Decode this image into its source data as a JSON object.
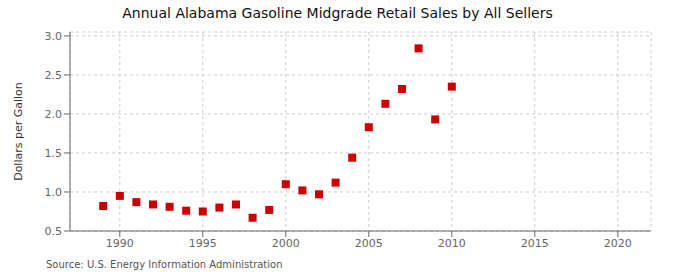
{
  "chart_data": {
    "type": "scatter",
    "title": "Annual Alabama Gasoline Midgrade Retail Sales by All Sellers",
    "ylabel": "Dollars per Gallon",
    "source": "Source: U.S. Energy Information Administration",
    "x": [
      1989,
      1990,
      1991,
      1992,
      1993,
      1994,
      1995,
      1996,
      1997,
      1998,
      1999,
      2000,
      2001,
      2002,
      2003,
      2004,
      2005,
      2006,
      2007,
      2008,
      2009,
      2010
    ],
    "values": [
      0.82,
      0.95,
      0.87,
      0.84,
      0.81,
      0.76,
      0.75,
      0.8,
      0.84,
      0.67,
      0.77,
      1.1,
      1.02,
      0.97,
      1.12,
      1.44,
      1.83,
      2.13,
      2.32,
      2.84,
      1.93,
      2.35
    ],
    "color": "#cc0000",
    "marker": "square",
    "grid": true,
    "xlim": [
      1987,
      2022
    ],
    "ylim": [
      0.5,
      3.05
    ],
    "xticks": [
      1990,
      1995,
      2000,
      2005,
      2010,
      2015,
      2020
    ],
    "yticks": [
      0.5,
      {
        "value": 1.0,
        "label": "1.0"
      },
      1.5,
      {
        "value": 2.0,
        "label": "2.0"
      },
      2.5,
      {
        "value": 3.0,
        "label": "3.0"
      }
    ]
  }
}
